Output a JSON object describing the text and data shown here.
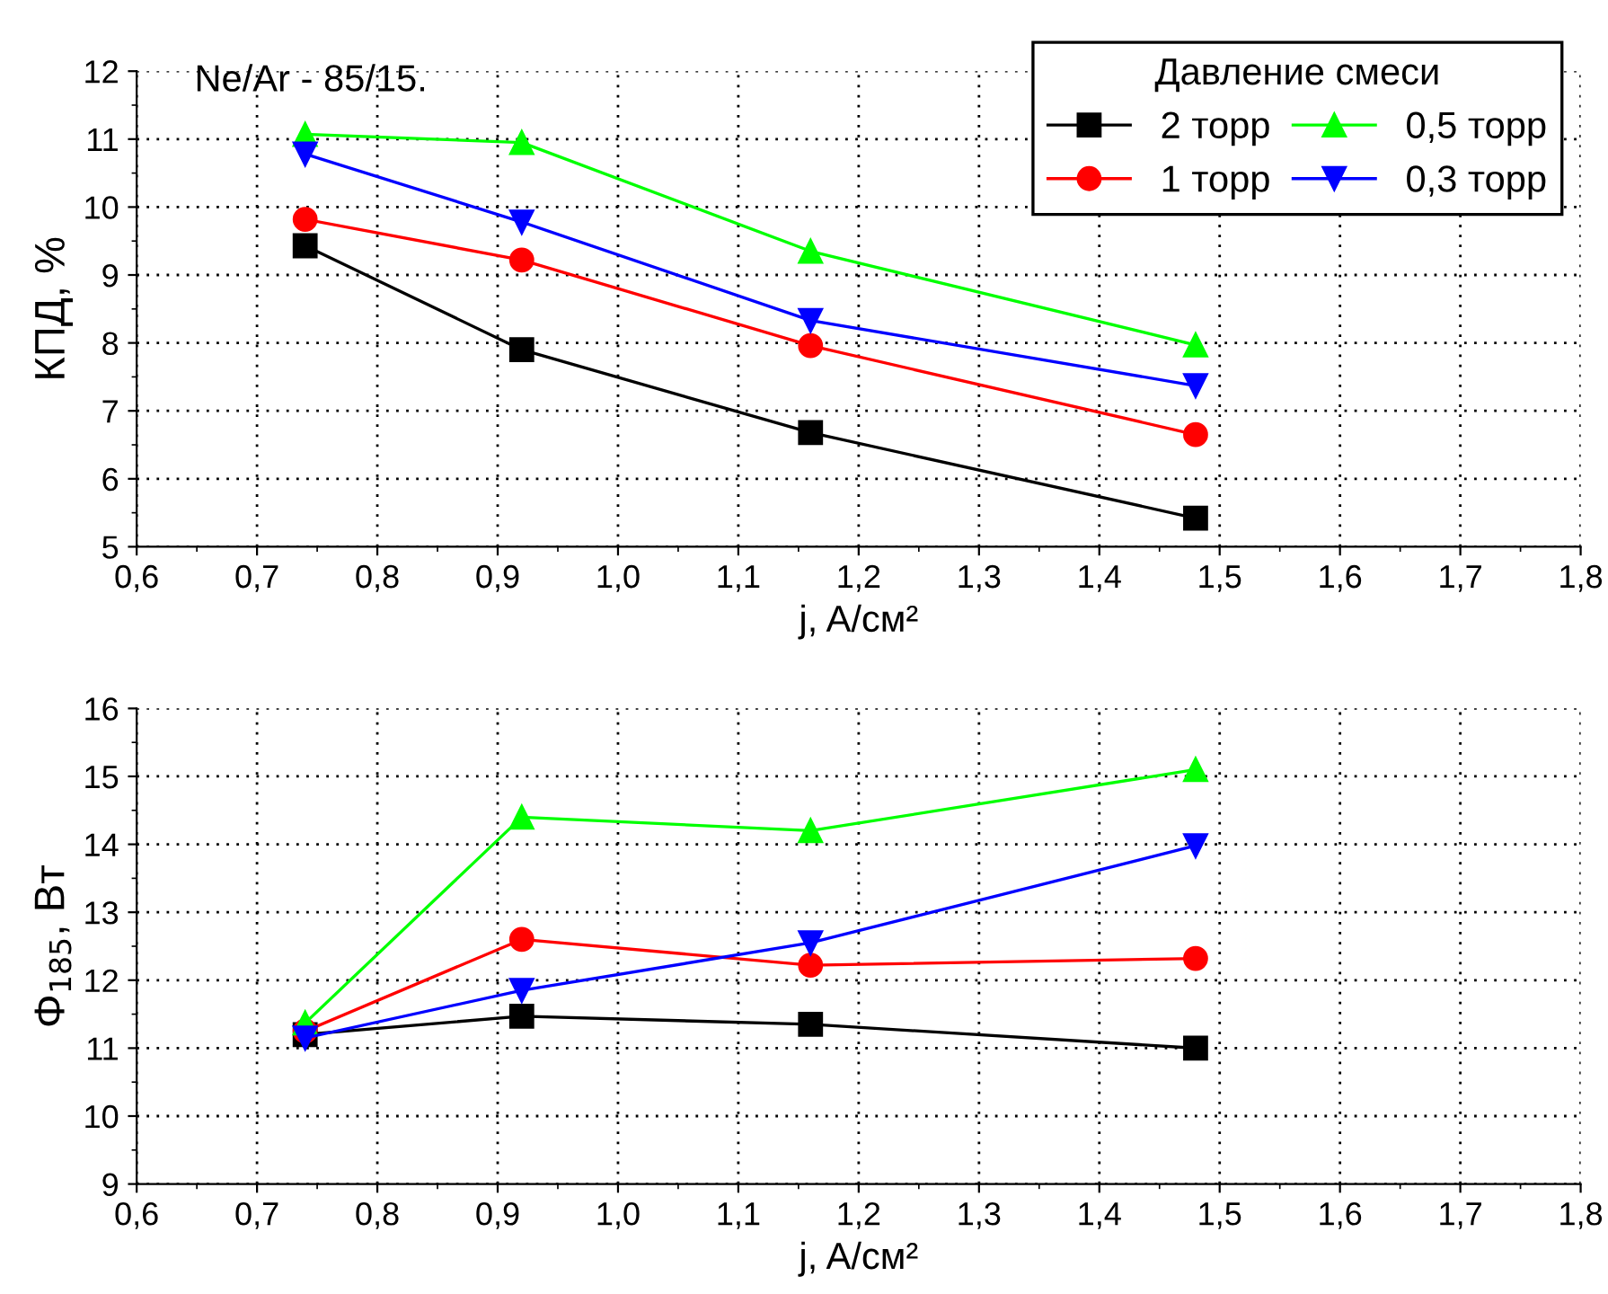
{
  "chart_data": [
    {
      "type": "line",
      "ylabel": "КПД, %",
      "xlabel": "j, A/см²",
      "annotations": [
        "Ne/Ar - 85/15."
      ],
      "legend_title": "Давление смеси",
      "legend": "top right",
      "grid": true,
      "line_style": "solid",
      "xlim": [
        0.6,
        1.8
      ],
      "xticks": [
        {
          "value": 0.6,
          "label": "0,6"
        },
        {
          "value": 0.7,
          "label": "0,7"
        },
        {
          "value": 0.8,
          "label": "0,8"
        },
        {
          "value": 0.9,
          "label": "0,9"
        },
        {
          "value": 1.0,
          "label": "1,0"
        },
        {
          "value": 1.1,
          "label": "1,1"
        },
        {
          "value": 1.2,
          "label": "1,2"
        },
        {
          "value": 1.3,
          "label": "1,3"
        },
        {
          "value": 1.4,
          "label": "1,4"
        },
        {
          "value": 1.5,
          "label": "1,5"
        },
        {
          "value": 1.6,
          "label": "1,6"
        },
        {
          "value": 1.7,
          "label": "1,7"
        },
        {
          "value": 1.8,
          "label": "1,8"
        }
      ],
      "ylim": [
        5,
        12
      ],
      "yticks": [
        5,
        6,
        7,
        8,
        9,
        10,
        11,
        12
      ],
      "x": [
        0.74,
        0.92,
        1.16,
        1.48
      ],
      "series": [
        {
          "name": "2 торр",
          "color": "#000000",
          "marker": "square",
          "values": [
            9.43,
            7.9,
            6.68,
            5.42
          ]
        },
        {
          "name": "1 торр",
          "color": "#ff0000",
          "marker": "circle",
          "values": [
            9.82,
            9.22,
            7.96,
            6.65
          ]
        },
        {
          "name": "0,5 торр",
          "color": "#00ff00",
          "marker": "triangle",
          "values": [
            11.07,
            10.95,
            9.35,
            7.97
          ]
        },
        {
          "name": "0,3 торр",
          "color": "#0000ff",
          "marker": "triangle_down",
          "values": [
            10.78,
            9.78,
            8.33,
            7.37
          ]
        }
      ]
    },
    {
      "type": "line",
      "ylabel": "Φ$_{185}$, Вт",
      "xlabel": "j, A/см²",
      "grid": true,
      "line_style": "solid",
      "xlim": [
        0.6,
        1.8
      ],
      "xticks": [
        {
          "value": 0.6,
          "label": "0,6"
        },
        {
          "value": 0.7,
          "label": "0,7"
        },
        {
          "value": 0.8,
          "label": "0,8"
        },
        {
          "value": 0.9,
          "label": "0,9"
        },
        {
          "value": 1.0,
          "label": "1,0"
        },
        {
          "value": 1.1,
          "label": "1,1"
        },
        {
          "value": 1.2,
          "label": "1,2"
        },
        {
          "value": 1.3,
          "label": "1,3"
        },
        {
          "value": 1.4,
          "label": "1,4"
        },
        {
          "value": 1.5,
          "label": "1,5"
        },
        {
          "value": 1.6,
          "label": "1,6"
        },
        {
          "value": 1.7,
          "label": "1,7"
        },
        {
          "value": 1.8,
          "label": "1,8"
        }
      ],
      "ylim": [
        9,
        16
      ],
      "yticks": [
        9,
        10,
        11,
        12,
        13,
        14,
        15,
        16
      ],
      "x": [
        0.74,
        0.92,
        1.16,
        1.48
      ],
      "series": [
        {
          "color": "#000000",
          "marker": "square",
          "values": [
            11.2,
            11.47,
            11.35,
            11.0
          ]
        },
        {
          "color": "#ff0000",
          "marker": "circle",
          "values": [
            11.25,
            12.6,
            12.22,
            12.32
          ]
        },
        {
          "color": "#00ff00",
          "marker": "triangle",
          "values": [
            11.37,
            14.4,
            14.2,
            15.1
          ]
        },
        {
          "color": "#0000ff",
          "marker": "triangle_down",
          "values": [
            11.15,
            11.85,
            12.55,
            13.98
          ]
        }
      ]
    }
  ]
}
